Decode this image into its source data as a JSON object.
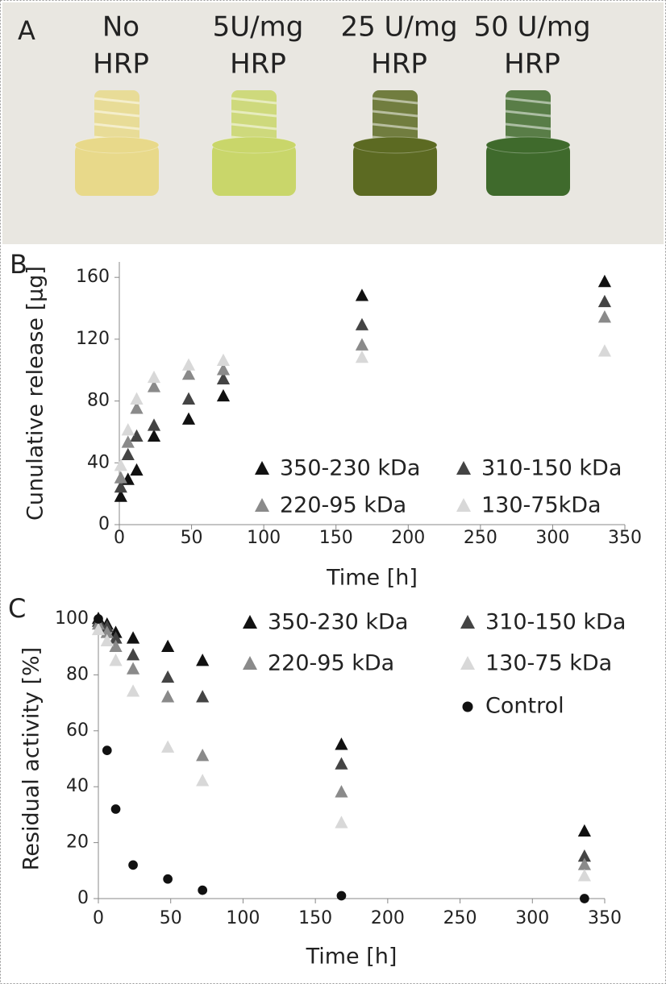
{
  "panel_a": {
    "label": "A",
    "samples": [
      {
        "lines": [
          "No",
          "HRP"
        ],
        "color": "#e8d98a"
      },
      {
        "lines": [
          "5U/mg",
          "HRP"
        ],
        "color": "#c9d66a"
      },
      {
        "lines": [
          "25 U/mg",
          "HRP"
        ],
        "color": "#5c6a22"
      },
      {
        "lines": [
          "50 U/mg",
          "HRP"
        ],
        "color": "#3f6a2c"
      }
    ]
  },
  "chart_data": [
    {
      "type": "scatter",
      "panel_label": "B",
      "x_label": "Time [h]",
      "y_label": "Cunulative release [µg]",
      "x": [
        1,
        6,
        12,
        24,
        48,
        72,
        168,
        336
      ],
      "xlim": [
        0,
        350
      ],
      "xticks": [
        0,
        50,
        100,
        150,
        200,
        250,
        300,
        350
      ],
      "ylim": [
        0,
        170
      ],
      "yticks": [
        0,
        40,
        80,
        120,
        160
      ],
      "legend_columns": 2,
      "series": [
        {
          "name": "350-230 kDa",
          "color": "#111111",
          "marker": "triangle",
          "values": [
            18,
            29,
            35,
            57,
            68,
            83,
            148,
            157
          ]
        },
        {
          "name": "310-150 kDa",
          "color": "#444444",
          "marker": "triangle",
          "values": [
            24,
            45,
            57,
            64,
            81,
            94,
            129,
            144
          ]
        },
        {
          "name": "220-95 kDa",
          "color": "#8a8a8a",
          "marker": "triangle",
          "values": [
            30,
            53,
            75,
            89,
            97,
            100,
            116,
            134
          ]
        },
        {
          "name": "130-75kDa",
          "color": "#d8d8d8",
          "marker": "triangle",
          "values": [
            38,
            61,
            81,
            95,
            103,
            106,
            108,
            112
          ]
        }
      ]
    },
    {
      "type": "scatter",
      "panel_label": "C",
      "x_label": "Time [h]",
      "y_label": "Residual activity [%]",
      "x": [
        0,
        6,
        12,
        24,
        48,
        72,
        168,
        336
      ],
      "xlim": [
        0,
        350
      ],
      "xticks": [
        0,
        50,
        100,
        150,
        200,
        250,
        300,
        350
      ],
      "ylim": [
        0,
        100
      ],
      "yticks": [
        0,
        20,
        40,
        60,
        80,
        100
      ],
      "legend_columns": 2,
      "series": [
        {
          "name": "350-230 kDa",
          "color": "#111111",
          "marker": "triangle",
          "values": [
            100,
            98,
            95,
            93,
            90,
            85,
            55,
            24
          ]
        },
        {
          "name": "310-150 kDa",
          "color": "#444444",
          "marker": "triangle",
          "values": [
            99,
            97,
            93,
            87,
            79,
            72,
            48,
            15
          ]
        },
        {
          "name": "220-95 kDa",
          "color": "#8a8a8a",
          "marker": "triangle",
          "values": [
            98,
            95,
            90,
            82,
            72,
            51,
            38,
            12
          ]
        },
        {
          "name": "130-75 kDa",
          "color": "#d8d8d8",
          "marker": "triangle",
          "values": [
            96,
            92,
            85,
            74,
            54,
            42,
            27,
            8
          ]
        },
        {
          "name": "Control",
          "color": "#111111",
          "marker": "circle",
          "values": [
            100,
            53,
            32,
            12,
            7,
            3,
            1,
            0
          ]
        }
      ]
    }
  ]
}
